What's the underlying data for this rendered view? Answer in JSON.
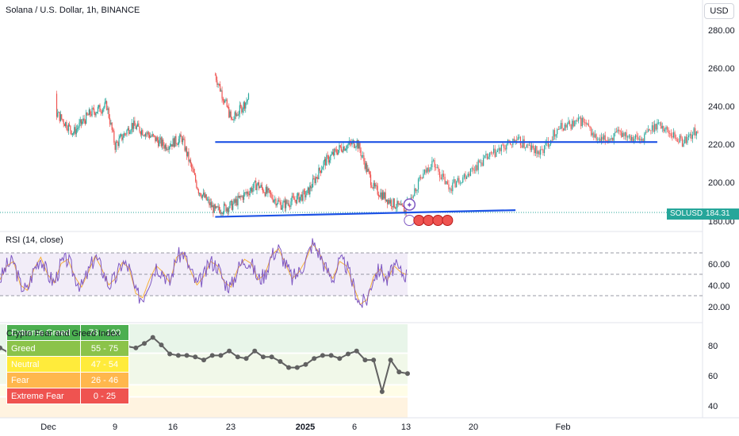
{
  "header": {
    "symbol_title": "Solana / U.S. Dollar, 1h, BINANCE",
    "currency_button": "USD"
  },
  "price_pane": {
    "y_ticks": [
      "280.00",
      "260.00",
      "240.00",
      "220.00",
      "200.00",
      "180.00"
    ],
    "last_price_label": "SOLUSD",
    "last_price": "184.31",
    "last_price_value": 184.31,
    "colors": {
      "up": "#26a69a",
      "down": "#ef5350",
      "line": "#1e53e5",
      "badge": "#26a69a"
    }
  },
  "rsi_pane": {
    "title": "RSI (14, close)",
    "y_ticks": [
      "60.00",
      "40.00",
      "20.00"
    ],
    "upper_band": 70,
    "lower_band": 30,
    "colors": {
      "line": "#7e57c2",
      "ma": "#f7b13a",
      "band": "#ede7f6"
    }
  },
  "fear_greed_pane": {
    "title": "Crypto Fear and Greed Index",
    "y_ticks": [
      "80",
      "60",
      "40"
    ],
    "legend": [
      {
        "label": "Extreme Greed",
        "range": "76 - 100",
        "color": "#4caf50"
      },
      {
        "label": "Greed",
        "range": "55 - 75",
        "color": "#8bc34a"
      },
      {
        "label": "Neutral",
        "range": "47 - 54",
        "color": "#ffeb3b"
      },
      {
        "label": "Fear",
        "range": "26 - 46",
        "color": "#ffb74d"
      },
      {
        "label": "Extreme Fear",
        "range": "0 - 25",
        "color": "#ef5350"
      }
    ]
  },
  "time_axis": {
    "labels": [
      "Dec",
      "9",
      "16",
      "23",
      "2025",
      "6",
      "13",
      "20",
      "Feb"
    ]
  },
  "chart_data": [
    {
      "type": "candlestick",
      "title": "Solana / U.S. Dollar, 1h, BINANCE",
      "ylim": [
        175,
        290
      ],
      "x_range": [
        "Nov 26",
        "Feb 4"
      ],
      "path_points": [
        {
          "x": "Nov 26",
          "y": 256
        },
        {
          "x": "Nov 28",
          "y": 232
        },
        {
          "x": "Nov 30",
          "y": 244
        },
        {
          "x": "Dec 2",
          "y": 236
        },
        {
          "x": "Dec 4",
          "y": 226
        },
        {
          "x": "Dec 6",
          "y": 236
        },
        {
          "x": "Dec 8",
          "y": 240
        },
        {
          "x": "Dec 9",
          "y": 219
        },
        {
          "x": "Dec 11",
          "y": 230
        },
        {
          "x": "Dec 13",
          "y": 225
        },
        {
          "x": "Dec 15",
          "y": 219
        },
        {
          "x": "Dec 17",
          "y": 223
        },
        {
          "x": "Dec 19",
          "y": 196
        },
        {
          "x": "Dec 21",
          "y": 185
        },
        {
          "x": "Dec 23",
          "y": 188
        },
        {
          "x": "Dec 26",
          "y": 199
        },
        {
          "x": "Dec 29",
          "y": 188
        },
        {
          "x": "Jan 1",
          "y": 194
        },
        {
          "x": "Jan 3",
          "y": 210
        },
        {
          "x": "Jan 5",
          "y": 218
        },
        {
          "x": "Jan 7",
          "y": 221
        },
        {
          "x": "Jan 9",
          "y": 197
        },
        {
          "x": "Jan 11",
          "y": 190
        },
        {
          "x": "Jan 13",
          "y": 184.31
        }
      ],
      "projection_points": [
        {
          "x": "Jan 13",
          "y": 190
        },
        {
          "x": "Jan 16",
          "y": 211
        },
        {
          "x": "Jan 18",
          "y": 197
        },
        {
          "x": "Jan 22",
          "y": 211
        },
        {
          "x": "Jan 26",
          "y": 222
        },
        {
          "x": "Jan 29",
          "y": 215
        },
        {
          "x": "Jan 31",
          "y": 228
        },
        {
          "x": "Feb 3",
          "y": 232
        },
        {
          "x": "Feb 5",
          "y": 221
        },
        {
          "x": "Feb 8",
          "y": 226
        },
        {
          "x": "Feb 10",
          "y": 222
        },
        {
          "x": "Feb 12",
          "y": 231
        },
        {
          "x": "Feb 15",
          "y": 221
        },
        {
          "x": "Feb 17",
          "y": 228
        }
      ],
      "trend_lines": [
        {
          "from": {
            "x": "Nov 26",
            "y": 221
          },
          "to": {
            "x": "Feb 12",
            "y": 221
          }
        },
        {
          "from": {
            "x": "Dec 21",
            "y": 182
          },
          "to": {
            "x": "Jan 26",
            "y": 185.5
          }
        }
      ]
    },
    {
      "type": "line",
      "title": "RSI (14, close)",
      "ylim": [
        10,
        85
      ],
      "series": [
        {
          "values": [
            45,
            58,
            62,
            40,
            35,
            55,
            66,
            50,
            42,
            60,
            64,
            48,
            38,
            52,
            67,
            55,
            40,
            46,
            61,
            56,
            32,
            28,
            45,
            58,
            52,
            42,
            66,
            70,
            54,
            40,
            48,
            62,
            58,
            43,
            38,
            55,
            64,
            60,
            45,
            50,
            68,
            74,
            60,
            46,
            52,
            63,
            79,
            70,
            55,
            46,
            62,
            58,
            40,
            22,
            26,
            48,
            55,
            44,
            58,
            52,
            49
          ]
        }
      ]
    },
    {
      "type": "line",
      "title": "Crypto Fear and Greed Index",
      "ylim": [
        35,
        100
      ],
      "series": [
        {
          "values": [
            79,
            76,
            80,
            78,
            75,
            73,
            78,
            84,
            83,
            79,
            76,
            74,
            75,
            81,
            77,
            80,
            79,
            82,
            86,
            81,
            75,
            74,
            74,
            73,
            71,
            74,
            74,
            77,
            73,
            72,
            77,
            73,
            73,
            70,
            66,
            66,
            68,
            72,
            74,
            74,
            72,
            75,
            77,
            71,
            71,
            50,
            71,
            63,
            62
          ]
        }
      ]
    }
  ]
}
